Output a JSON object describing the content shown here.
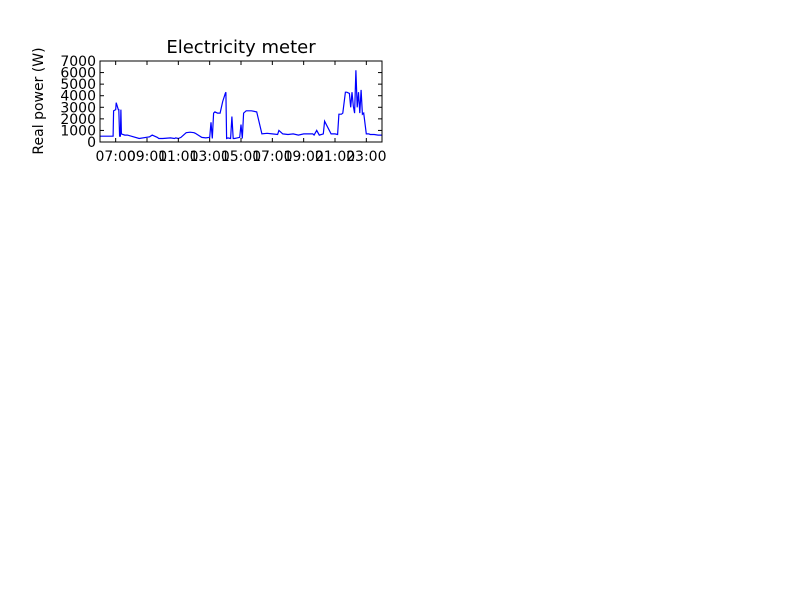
{
  "chart_data": {
    "type": "line",
    "title": "Electricity meter",
    "xlabel": "",
    "ylabel": "Real power (W)",
    "ylim": [
      0,
      7000
    ],
    "xlim": [
      "06:00",
      "24:00"
    ],
    "yticks": [
      "0",
      "1000",
      "2000",
      "3000",
      "4000",
      "5000",
      "6000",
      "7000"
    ],
    "xticks": [
      "07:00",
      "09:00",
      "11:00",
      "13:00",
      "15:00",
      "17:00",
      "19:00",
      "21:00",
      "23:00"
    ],
    "line_color": "#0000ff",
    "grid": false,
    "series": [
      {
        "x": [
          "06:00",
          "06:50",
          "06:52",
          "07:00",
          "07:02",
          "07:10",
          "07:12",
          "07:15",
          "07:18",
          "07:20",
          "07:22",
          "07:35",
          "07:45",
          "08:00",
          "08:30",
          "09:10",
          "09:20",
          "09:40",
          "09:45",
          "10:00",
          "10:30",
          "10:45",
          "10:50",
          "11:00",
          "11:10",
          "11:30",
          "11:45",
          "12:00",
          "12:05",
          "12:30",
          "12:45",
          "13:00",
          "13:05",
          "13:10",
          "13:15",
          "13:20",
          "13:30",
          "13:40",
          "13:50",
          "14:00",
          "14:02",
          "14:05",
          "14:10",
          "14:20",
          "14:25",
          "14:30",
          "14:35",
          "14:45",
          "14:55",
          "15:00",
          "15:05",
          "15:10",
          "15:20",
          "15:40",
          "16:00",
          "16:20",
          "16:40",
          "17:00",
          "17:20",
          "17:25",
          "17:40",
          "18:00",
          "18:20",
          "18:40",
          "19:00",
          "19:20",
          "19:35",
          "19:40",
          "19:50",
          "20:00",
          "20:15",
          "20:20",
          "20:45",
          "21:00",
          "21:10",
          "21:15",
          "21:25",
          "21:30",
          "21:40",
          "21:45",
          "21:55",
          "22:00",
          "22:05",
          "22:10",
          "22:15",
          "22:20",
          "22:25",
          "22:30",
          "22:35",
          "22:40",
          "22:45",
          "22:50",
          "23:00",
          "23:10",
          "23:15",
          "23:30",
          "23:45",
          "24:00"
        ],
        "y": [
          500,
          500,
          2700,
          2800,
          3400,
          2800,
          2800,
          500,
          500,
          2800,
          700,
          600,
          600,
          500,
          300,
          450,
          600,
          400,
          300,
          300,
          350,
          300,
          350,
          300,
          400,
          800,
          850,
          800,
          750,
          400,
          350,
          400,
          1700,
          300,
          2500,
          2600,
          2500,
          2500,
          3500,
          4200,
          4300,
          300,
          350,
          300,
          2200,
          300,
          300,
          350,
          400,
          1500,
          300,
          2500,
          2700,
          2700,
          2600,
          700,
          750,
          700,
          650,
          1000,
          700,
          650,
          700,
          600,
          700,
          700,
          700,
          600,
          1000,
          600,
          700,
          1800,
          700,
          700,
          650,
          2400,
          2400,
          2500,
          4300,
          4300,
          4200,
          3000,
          4300,
          3100,
          2500,
          6200,
          3000,
          4300,
          2500,
          4500,
          2400,
          2500,
          700,
          700,
          650,
          650,
          600,
          600
        ]
      }
    ]
  }
}
